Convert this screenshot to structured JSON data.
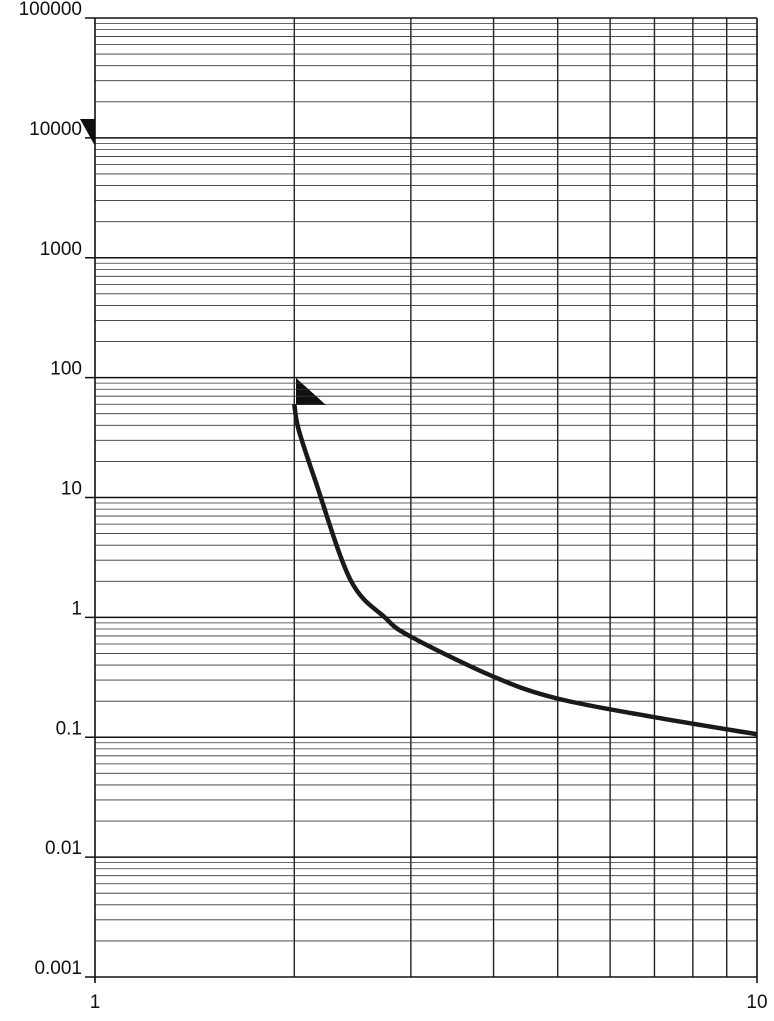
{
  "chart_data": {
    "type": "line",
    "log_x": true,
    "log_y": true,
    "grid": true,
    "minor_grid": true,
    "x": [
      2,
      2.03,
      2.15,
      2.43,
      2.74,
      3,
      4,
      5,
      7,
      10
    ],
    "series": [
      {
        "color": "#1a1a1a",
        "values": [
          60,
          37,
          14,
          2.07,
          1,
          0.69,
          0.32,
          0.21,
          0.147,
          0.106
        ]
      }
    ],
    "xlim": [
      1,
      10
    ],
    "xticks": [
      1,
      10
    ],
    "ylim": [
      0.001,
      100000
    ],
    "yticks": [
      0.001,
      0.01,
      0.1,
      1,
      10,
      100,
      1000,
      10000,
      100000
    ]
  }
}
